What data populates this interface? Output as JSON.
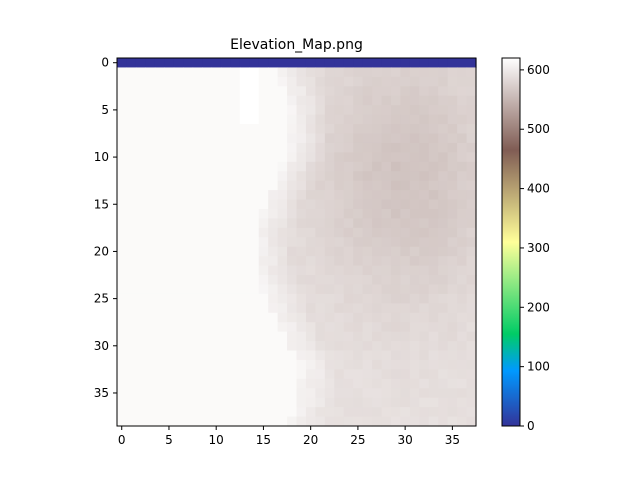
{
  "chart_data": {
    "type": "heatmap",
    "title": "Elevation_Map.png",
    "xlabel": "",
    "ylabel": "",
    "cols": 38,
    "rows": 39,
    "xlim": [
      -0.5,
      37.5
    ],
    "ylim": [
      38.5,
      -0.5
    ],
    "x_ticks": [
      0,
      5,
      10,
      15,
      20,
      25,
      30,
      35
    ],
    "y_ticks": [
      0,
      5,
      10,
      15,
      20,
      25,
      30,
      35
    ],
    "colormap": "terrain",
    "colorbar_range": [
      0,
      620
    ],
    "colorbar_ticks": [
      0,
      100,
      200,
      300,
      400,
      500,
      600
    ],
    "grid": false,
    "notes_visible": {
      "row0": "value 0 across all columns",
      "left_region": "uniform ~620 (very light)",
      "right_region": "~560-590 (light brownish gray), darkest around columns 25-35, rows 5-20"
    }
  }
}
